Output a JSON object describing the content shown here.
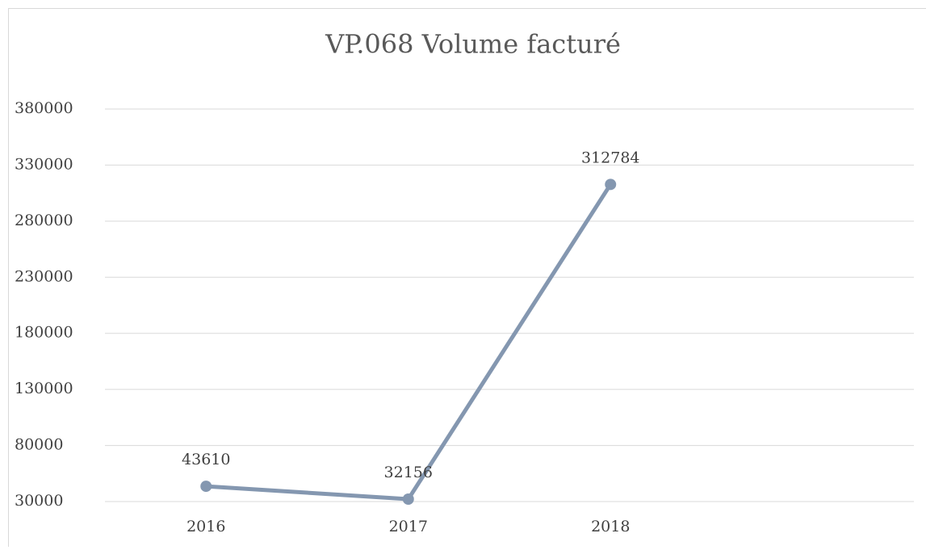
{
  "chart_data": {
    "type": "line",
    "title": "VP.068 Volume facturé",
    "categories": [
      "2016",
      "2017",
      "2018",
      null
    ],
    "values": [
      43610,
      32156,
      312784,
      null
    ],
    "color": "#8497b0",
    "ylim": [
      30000,
      380000
    ],
    "yticks": [
      30000,
      80000,
      130000,
      180000,
      230000,
      280000,
      330000,
      380000
    ],
    "grid": true,
    "data_labels": true,
    "markers": true
  }
}
